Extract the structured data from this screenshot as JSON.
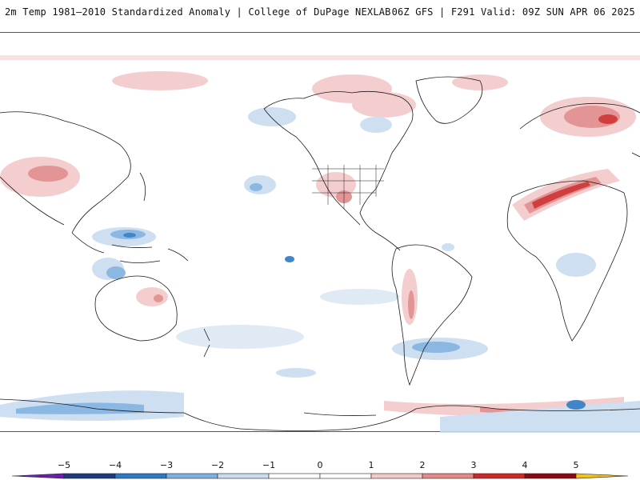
{
  "header": {
    "title_left": "2m Temp 1981–2010 Standardized Anomaly | College of DuPage NEXLAB",
    "title_right": "06Z GFS | F291 Valid: 09Z SUN APR 06 2025"
  },
  "colorbar": {
    "ticks": [
      {
        "label": "−5"
      },
      {
        "label": "−4"
      },
      {
        "label": "−3"
      },
      {
        "label": "−2"
      },
      {
        "label": "−1"
      },
      {
        "label": "0"
      },
      {
        "label": "1"
      },
      {
        "label": "2"
      },
      {
        "label": "3"
      },
      {
        "label": "4"
      },
      {
        "label": "5"
      }
    ],
    "colors": [
      "#6a1fb0",
      "#1f3a78",
      "#2f78c4",
      "#7fb0e0",
      "#c9dcf0",
      "#ffffff",
      "#ffffff",
      "#f3c9c9",
      "#e08a8a",
      "#cc2a2a",
      "#8b0a12",
      "#f2c21a"
    ]
  },
  "map": {
    "warm_color": "#d63030",
    "cold_color": "#2e74c8"
  }
}
